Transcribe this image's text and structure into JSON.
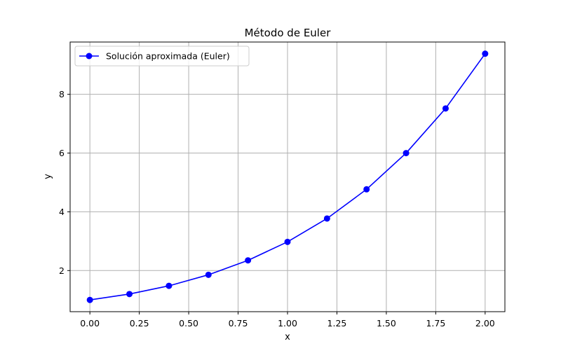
{
  "chart_data": {
    "type": "line",
    "title": "Método de Euler",
    "xlabel": "x",
    "ylabel": "y",
    "xlim": [
      -0.1,
      2.1
    ],
    "ylim": [
      0.6,
      9.78
    ],
    "xticks": [
      0.0,
      0.25,
      0.5,
      0.75,
      1.0,
      1.25,
      1.5,
      1.75,
      2.0
    ],
    "xtick_labels": [
      "0.00",
      "0.25",
      "0.50",
      "0.75",
      "1.00",
      "1.25",
      "1.50",
      "1.75",
      "2.00"
    ],
    "yticks": [
      2,
      4,
      6,
      8
    ],
    "ytick_labels": [
      "2",
      "4",
      "6",
      "8"
    ],
    "grid": true,
    "legend_position": "top-left",
    "series": [
      {
        "name": "Solución aproximada (Euler)",
        "color": "#0000ff",
        "marker": "circle",
        "x": [
          0.0,
          0.2,
          0.4,
          0.6,
          0.8,
          1.0,
          1.2,
          1.4,
          1.6,
          1.8,
          2.0
        ],
        "y": [
          1.0,
          1.2,
          1.48,
          1.856,
          2.3472,
          2.9766,
          3.7717,
          4.7658,
          5.9991,
          7.5188,
          9.3826
        ]
      }
    ]
  }
}
